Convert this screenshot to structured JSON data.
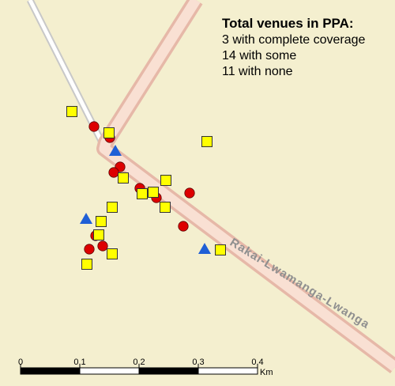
{
  "colors": {
    "background": "#f4efcf",
    "road_casing": "#e6b8a8",
    "road_fill": "#f9e0d3",
    "track_casing": "#c8c8c8",
    "track_fill": "#ffffff",
    "complete": "#1f5fd6",
    "some": "#ffff00",
    "none": "#dd0000"
  },
  "legend": {
    "title": "Total venues in PPA:",
    "line1": "3 with complete coverage",
    "line2": "14 with some",
    "line3": "11 with none"
  },
  "road": {
    "name": "Rakai-Lwamanga-Lwanga"
  },
  "scale_bar": {
    "ticks": [
      "0",
      "0.1",
      "0.2",
      "0.3",
      "0.4"
    ],
    "unit": "Km"
  },
  "venues": {
    "complete_coverage": [
      {
        "id": 1,
        "icon": "blue-triangle"
      },
      {
        "id": 2,
        "icon": "blue-triangle"
      },
      {
        "id": 3,
        "icon": "blue-triangle"
      }
    ],
    "some_coverage_count": 14,
    "no_coverage_count": 11
  }
}
